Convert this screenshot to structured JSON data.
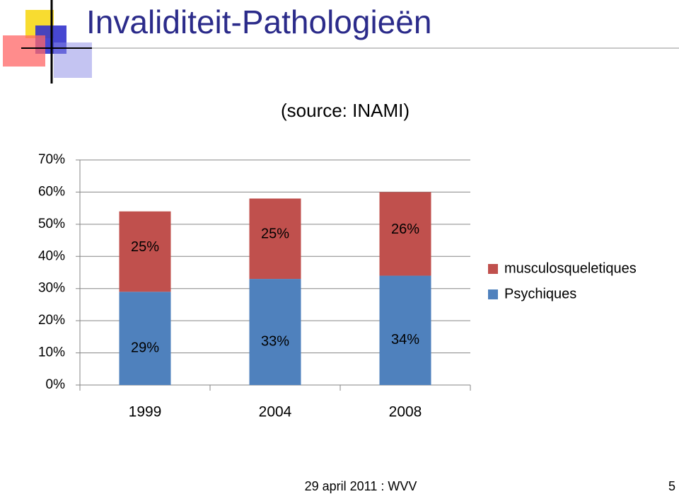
{
  "slide": {
    "title": "Invaliditeit-Pathologieën",
    "source": "(source: INAMI)",
    "footer": "29 april 2011 : WVV",
    "page": "5"
  },
  "chart_data": {
    "type": "bar",
    "stacked": true,
    "categories": [
      "1999",
      "2004",
      "2008"
    ],
    "series": [
      {
        "name": "Psychiques",
        "color": "#4f81bd",
        "values": [
          29,
          33,
          34
        ],
        "value_labels": [
          "29%",
          "33%",
          "34%"
        ]
      },
      {
        "name": "musculosqueletiques",
        "color": "#c0504d",
        "values": [
          25,
          25,
          26
        ],
        "value_labels": [
          "25%",
          "25%",
          "26%"
        ]
      }
    ],
    "ylim": [
      0,
      70
    ],
    "yticks": [
      {
        "value": 0,
        "label": "0%"
      },
      {
        "value": 10,
        "label": "10%"
      },
      {
        "value": 20,
        "label": "20%"
      },
      {
        "value": 30,
        "label": "30%"
      },
      {
        "value": 40,
        "label": "40%"
      },
      {
        "value": 50,
        "label": "50%"
      },
      {
        "value": 60,
        "label": "60%"
      },
      {
        "value": 70,
        "label": "70%"
      }
    ],
    "grid": true,
    "legend": "right"
  }
}
